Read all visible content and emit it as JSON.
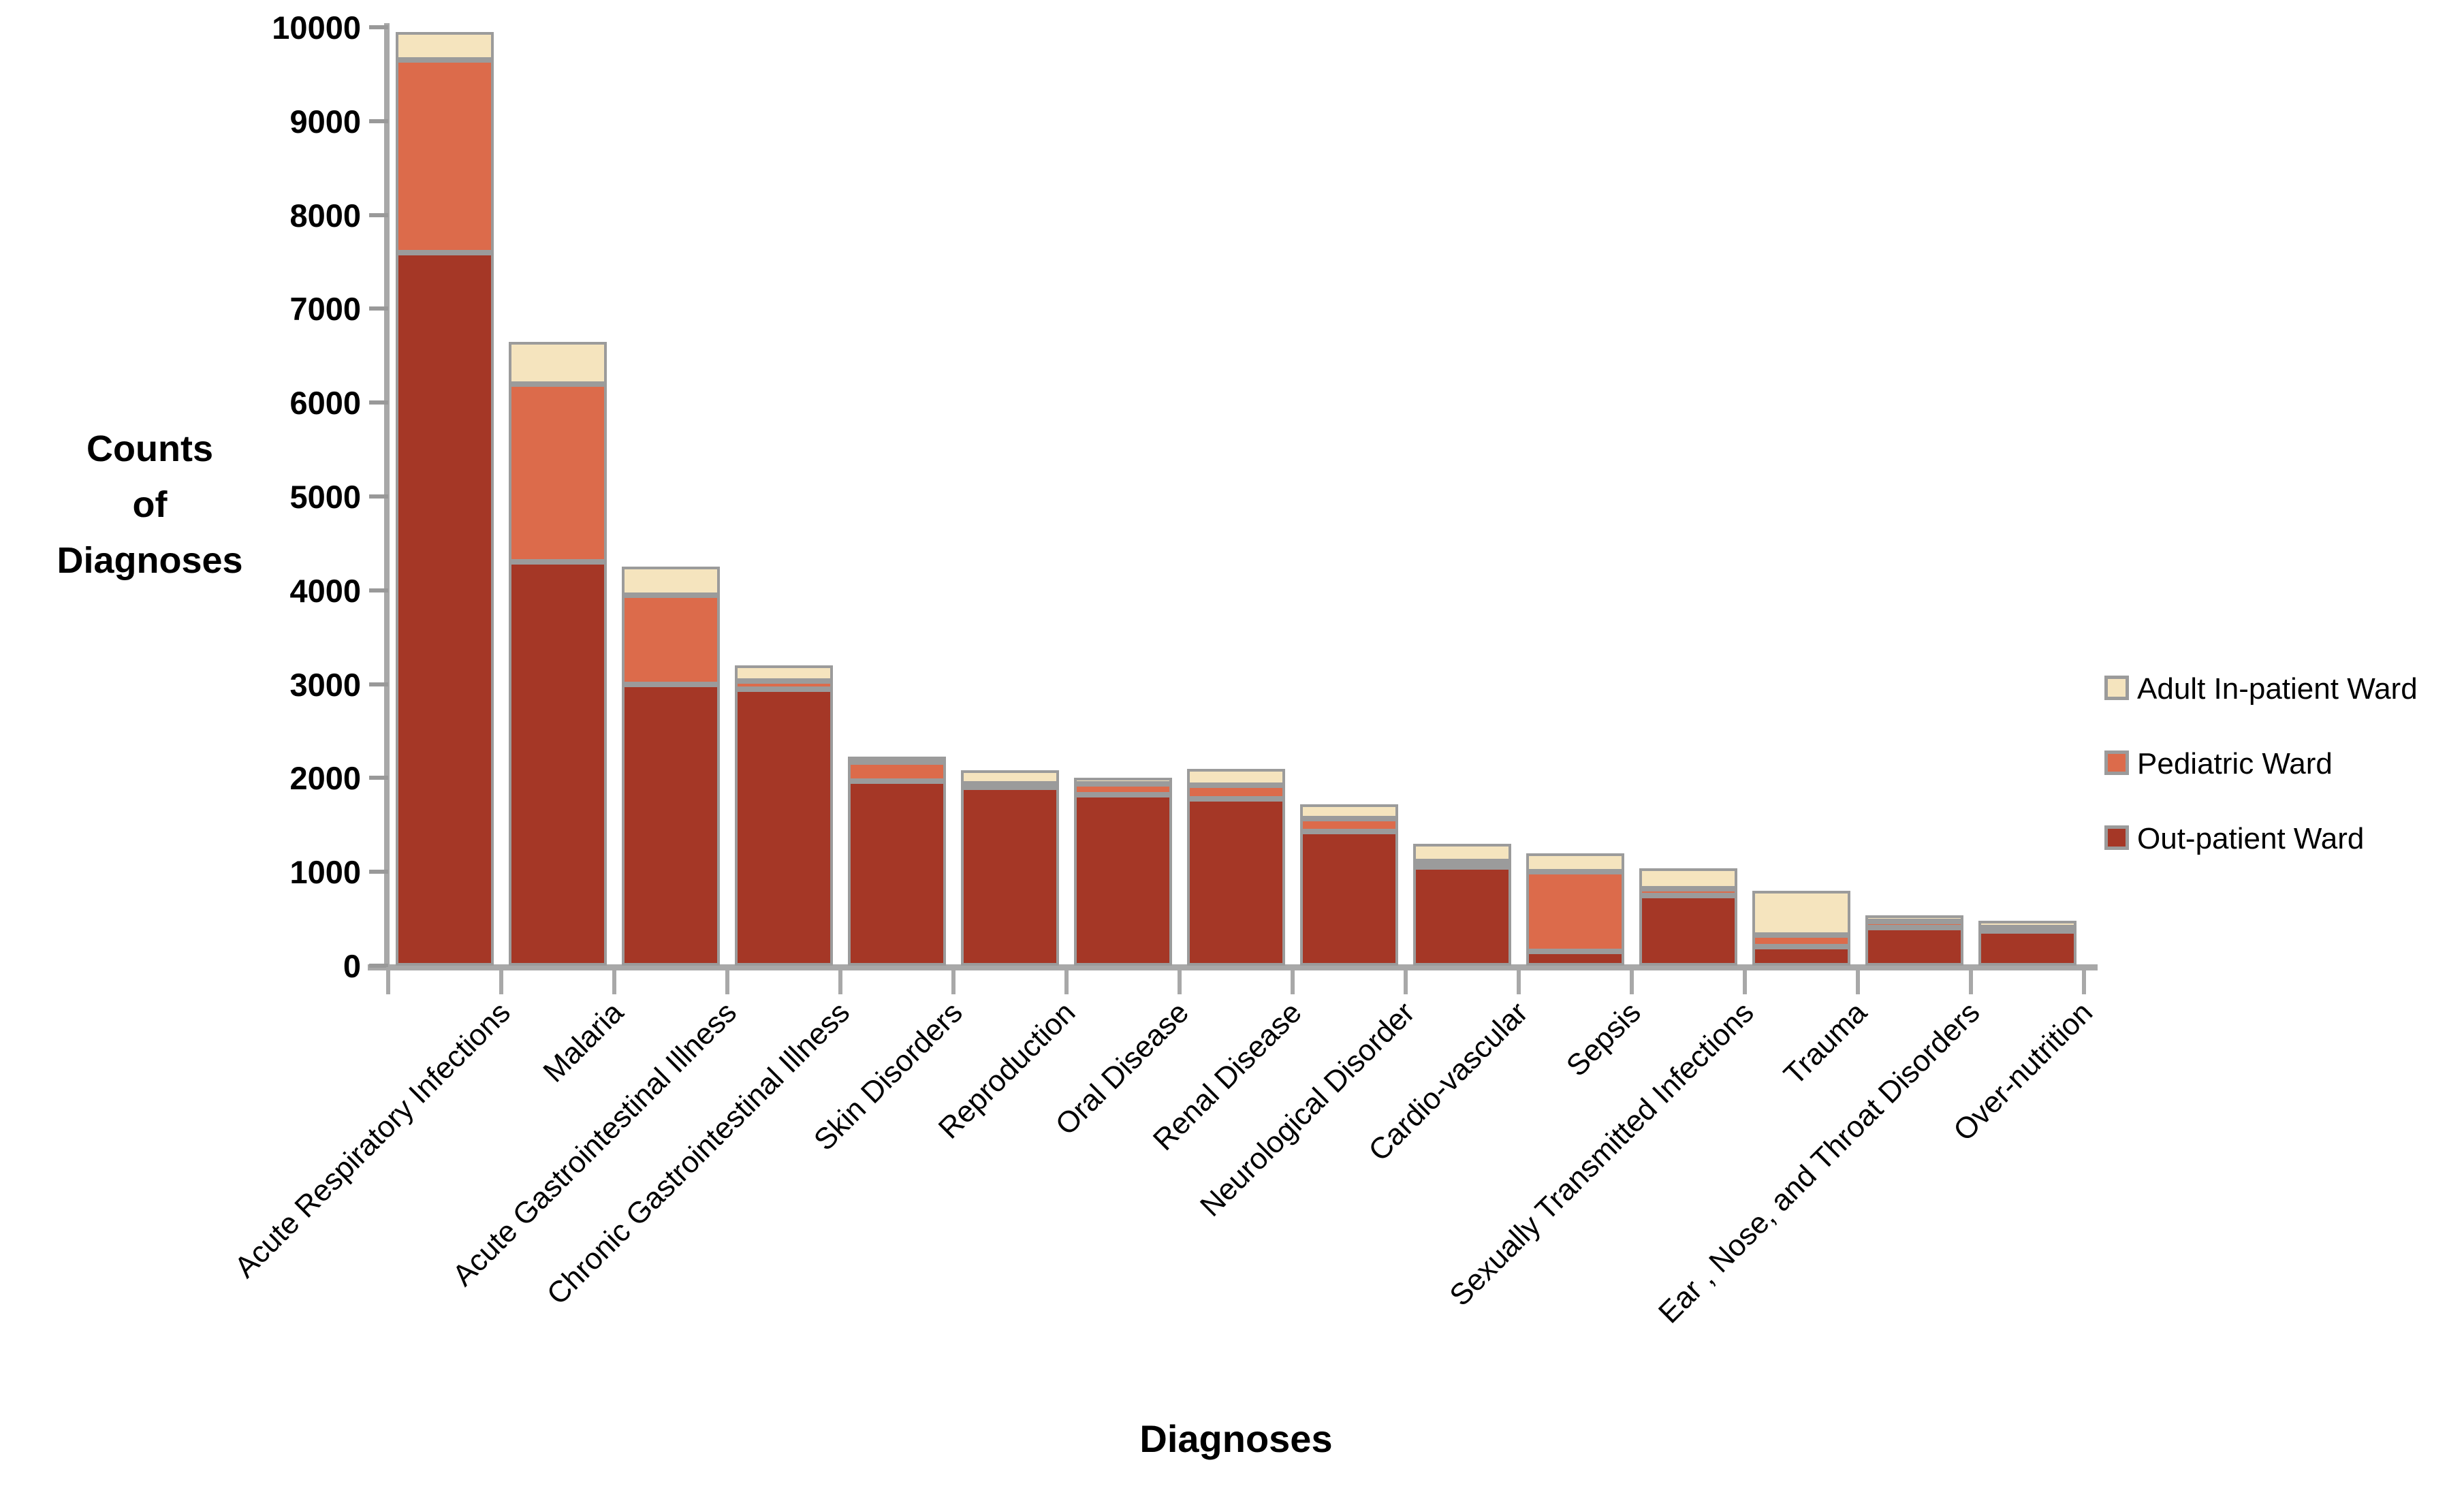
{
  "chart_data": {
    "type": "bar",
    "stacked": true,
    "xlabel": "Diagnoses",
    "ylabel_lines": [
      "Counts",
      "of",
      "Diagnoses"
    ],
    "ylim": [
      0,
      10000
    ],
    "yticks": [
      0,
      1000,
      2000,
      3000,
      4000,
      5000,
      6000,
      7000,
      8000,
      9000,
      10000
    ],
    "grid": false,
    "legend_position": "right",
    "categories": [
      "Acute Respiratory Infections",
      "Malaria",
      "Acute Gastrointestinal Illness",
      "Chronic Gastrointestinal Illness",
      "Skin Disorders",
      "Reproduction",
      "Oral Disease",
      "Renal Disease",
      "Neurological Disorder",
      "Cardio-vascular",
      "Sepsis",
      "Sexually Transmitted Infections",
      "Trauma",
      "Ear , Nose, and Throat Disorders",
      "Over-nutrition"
    ],
    "series": [
      {
        "name": "Out-patient Ward",
        "color": "#A53726",
        "values": [
          7600,
          4300,
          3000,
          2950,
          1970,
          1900,
          1820,
          1780,
          1430,
          1050,
          150,
          750,
          200,
          410,
          370
        ]
      },
      {
        "name": "Pediatric Ward",
        "color": "#DC6B4B",
        "values": [
          2050,
          1900,
          950,
          80,
          200,
          40,
          120,
          140,
          140,
          60,
          850,
          70,
          125,
          60,
          40
        ]
      },
      {
        "name": "Adult In-patient Ward",
        "color": "#F5E4BE",
        "values": [
          300,
          450,
          300,
          170,
          30,
          140,
          60,
          180,
          150,
          190,
          200,
          220,
          475,
          70,
          70
        ]
      }
    ],
    "legend": [
      "Adult In-patient Ward",
      "Pediatric Ward",
      "Out-patient Ward"
    ]
  },
  "colors": {
    "background": "#FFFFFF",
    "text": "#000000",
    "axis": "#A8A8A8",
    "tick": "#999999",
    "segment_border": "#9B9B9B"
  }
}
